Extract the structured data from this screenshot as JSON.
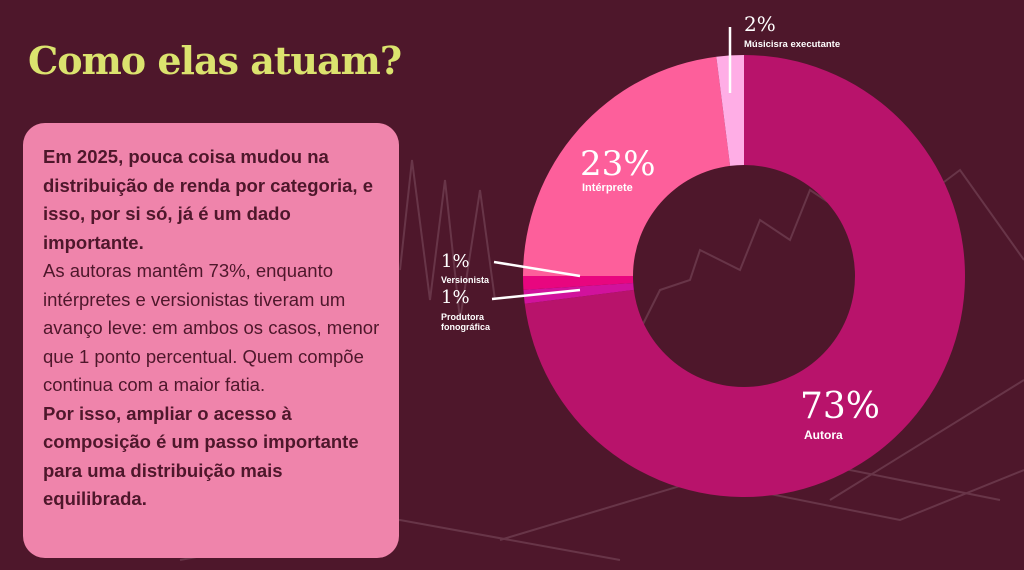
{
  "title": "Como elas atuam?",
  "text_box": {
    "intro": "Em 2025, pouca coisa mudou na distribuição de renda por categoria, e isso, por si só, já é um dado importante.",
    "body": "As autoras mantêm 73%, enquanto intérpretes e versionistas tiveram um avanço leve: em ambos os casos, menor que 1 ponto percentual. Quem compõe continua com a maior fatia.",
    "conclusion": "Por isso, ampliar o acesso à composição é um passo importante para uma distribuição mais equilibrada."
  },
  "chart_data": {
    "type": "pie",
    "donut": true,
    "slices": [
      {
        "label": "Autora",
        "value": 73,
        "display": "73%",
        "color": "#b8136b"
      },
      {
        "label": "Produtora fonográfica",
        "value": 1,
        "display": "1%",
        "color": "#d1129c"
      },
      {
        "label": "Versionista",
        "value": 1,
        "display": "1%",
        "color": "#e8067f"
      },
      {
        "label": "Intérprete",
        "value": 23,
        "display": "23%",
        "color": "#fd5f9b"
      },
      {
        "label": "Músicisra executante",
        "value": 2,
        "display": "2%",
        "color": "#ffaee6"
      }
    ]
  },
  "colors": {
    "background": "#4e172b",
    "title": "#dbe36e",
    "box": "#ef84ab"
  }
}
